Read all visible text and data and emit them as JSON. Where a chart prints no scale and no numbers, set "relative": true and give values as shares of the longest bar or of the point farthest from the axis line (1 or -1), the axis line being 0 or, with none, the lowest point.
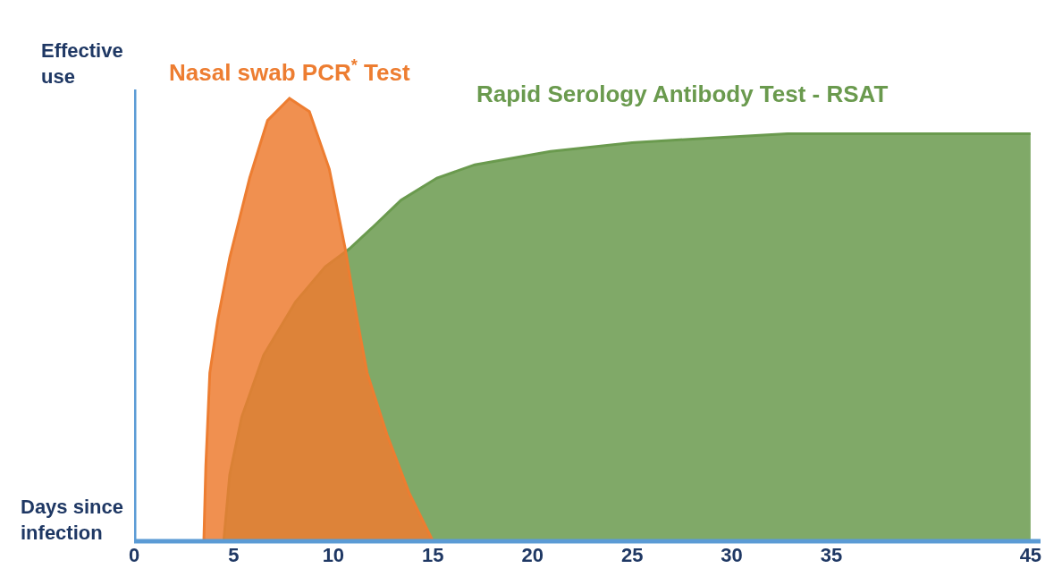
{
  "chart_data": {
    "type": "area",
    "relative": true,
    "xlabel": "Days since infection",
    "ylabel": "Effective use",
    "xlim": [
      0,
      45.5
    ],
    "xticks": [
      0,
      5,
      10,
      15,
      20,
      25,
      30,
      35,
      45
    ],
    "legend": false,
    "series": [
      {
        "name": "Rapid Serology Antibody Test - RSAT",
        "color": "#6a9a4e",
        "x": [
          4.5,
          4.8,
          5.4,
          6.5,
          8.1,
          9.6,
          10.8,
          12.0,
          13.4,
          15.2,
          17.1,
          20.9,
          25,
          28.8,
          32.8,
          38.7,
          45
        ],
        "values": [
          0,
          0.15,
          0.28,
          0.42,
          0.54,
          0.62,
          0.66,
          0.71,
          0.77,
          0.82,
          0.85,
          0.88,
          0.9,
          0.91,
          0.92,
          0.92,
          0.92
        ]
      },
      {
        "name": "Nasal swab PCR$^{*}$ Test",
        "color": "#ed7d31",
        "x": [
          3.5,
          3.6,
          3.8,
          4.2,
          4.8,
          5.8,
          6.7,
          7.8,
          8.8,
          9.8,
          10.6,
          11.2,
          11.7,
          12.7,
          13.8,
          15
        ],
        "values": [
          0,
          0.17,
          0.38,
          0.5,
          0.64,
          0.82,
          0.95,
          1,
          0.97,
          0.84,
          0.66,
          0.5,
          0.38,
          0.24,
          0.11,
          0
        ]
      }
    ]
  }
}
